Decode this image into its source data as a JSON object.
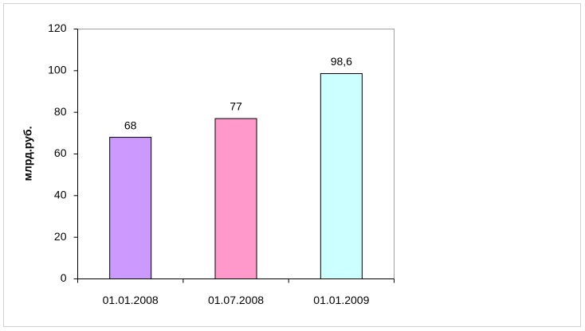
{
  "chart_data": {
    "type": "bar",
    "y_label": "млрд.руб.",
    "categories": [
      "01.01.2008",
      "01.07.2008",
      "01.01.2009"
    ],
    "values": [
      68,
      77,
      98.6
    ],
    "value_labels": [
      "68",
      "77",
      "98,6"
    ],
    "colors": [
      "#cc99ff",
      "#ff99cc",
      "#ccffff"
    ],
    "ylim": [
      0,
      120
    ],
    "yticks": [
      0,
      20,
      40,
      60,
      80,
      100,
      120
    ],
    "grid": false
  }
}
